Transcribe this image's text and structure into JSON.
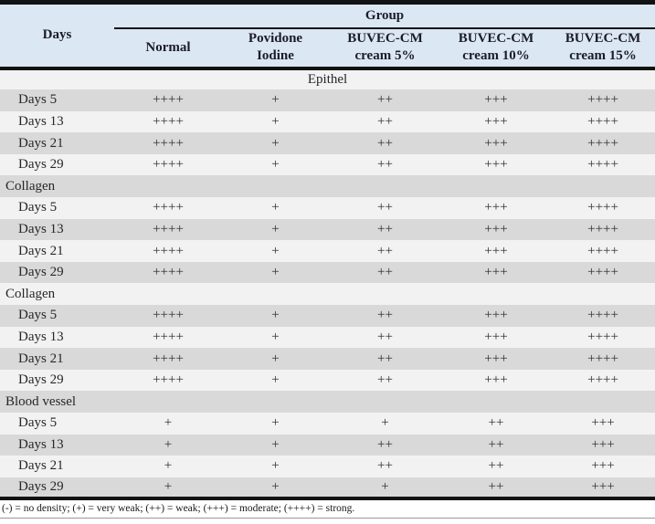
{
  "table": {
    "group_header": "Group",
    "days_header": "Days",
    "columns": [
      {
        "line1": "Normal",
        "line2": ""
      },
      {
        "line1": "Povidone",
        "line2": "Iodine"
      },
      {
        "line1": "BUVEC-CM",
        "line2": "cream 5%"
      },
      {
        "line1": "BUVEC-CM",
        "line2": "cream 10%"
      },
      {
        "line1": "BUVEC-CM",
        "line2": "cream 15%"
      }
    ],
    "sections": [
      {
        "name": "Epithel",
        "align": "center",
        "rows": [
          {
            "label": "Days 5",
            "values": [
              "++++",
              "+",
              "++",
              "+++",
              "++++"
            ]
          },
          {
            "label": "Days 13",
            "values": [
              "++++",
              "+",
              "++",
              "+++",
              "++++"
            ]
          },
          {
            "label": "Days 21",
            "values": [
              "++++",
              "+",
              "++",
              "+++",
              "++++"
            ]
          },
          {
            "label": "Days 29",
            "values": [
              "++++",
              "+",
              "++",
              "+++",
              "++++"
            ]
          }
        ]
      },
      {
        "name": "Collagen",
        "align": "left",
        "rows": [
          {
            "label": "Days 5",
            "values": [
              "++++",
              "+",
              "++",
              "+++",
              "++++"
            ]
          },
          {
            "label": "Days 13",
            "values": [
              "++++",
              "+",
              "++",
              "+++",
              "++++"
            ]
          },
          {
            "label": "Days 21",
            "values": [
              "++++",
              "+",
              "++",
              "+++",
              "++++"
            ]
          },
          {
            "label": "Days 29",
            "values": [
              "++++",
              "+",
              "++",
              "+++",
              "++++"
            ]
          }
        ]
      },
      {
        "name": "Collagen",
        "align": "left",
        "rows": [
          {
            "label": "Days 5",
            "values": [
              "++++",
              "+",
              "++",
              "+++",
              "++++"
            ]
          },
          {
            "label": "Days 13",
            "values": [
              "++++",
              "+",
              "++",
              "+++",
              "++++"
            ]
          },
          {
            "label": "Days 21",
            "values": [
              "++++",
              "+",
              "++",
              "+++",
              "++++"
            ]
          },
          {
            "label": "Days 29",
            "values": [
              "++++",
              "+",
              "++",
              "+++",
              "++++"
            ]
          }
        ]
      },
      {
        "name": "Blood vessel",
        "align": "left",
        "rows": [
          {
            "label": "Days 5",
            "values": [
              "+",
              "+",
              "+",
              "++",
              "+++"
            ]
          },
          {
            "label": "Days 13",
            "values": [
              "+",
              "+",
              "++",
              "++",
              "+++"
            ]
          },
          {
            "label": "Days 21",
            "values": [
              "+",
              "+",
              "++",
              "++",
              "+++"
            ]
          },
          {
            "label": "Days 29",
            "values": [
              "+",
              "+",
              "+",
              "++",
              "+++"
            ]
          }
        ]
      }
    ],
    "footnote": "(-) = no density; (+) = very weak; (++) = weak; (+++) = moderate; (++++) = strong."
  },
  "colors": {
    "header_bg": "#dbe7f3",
    "row_gray": "#d9d9d9",
    "row_light": "#f2f2f2",
    "border": "#121212",
    "header_text": "#1b1b2b",
    "body_text": "#303036"
  }
}
